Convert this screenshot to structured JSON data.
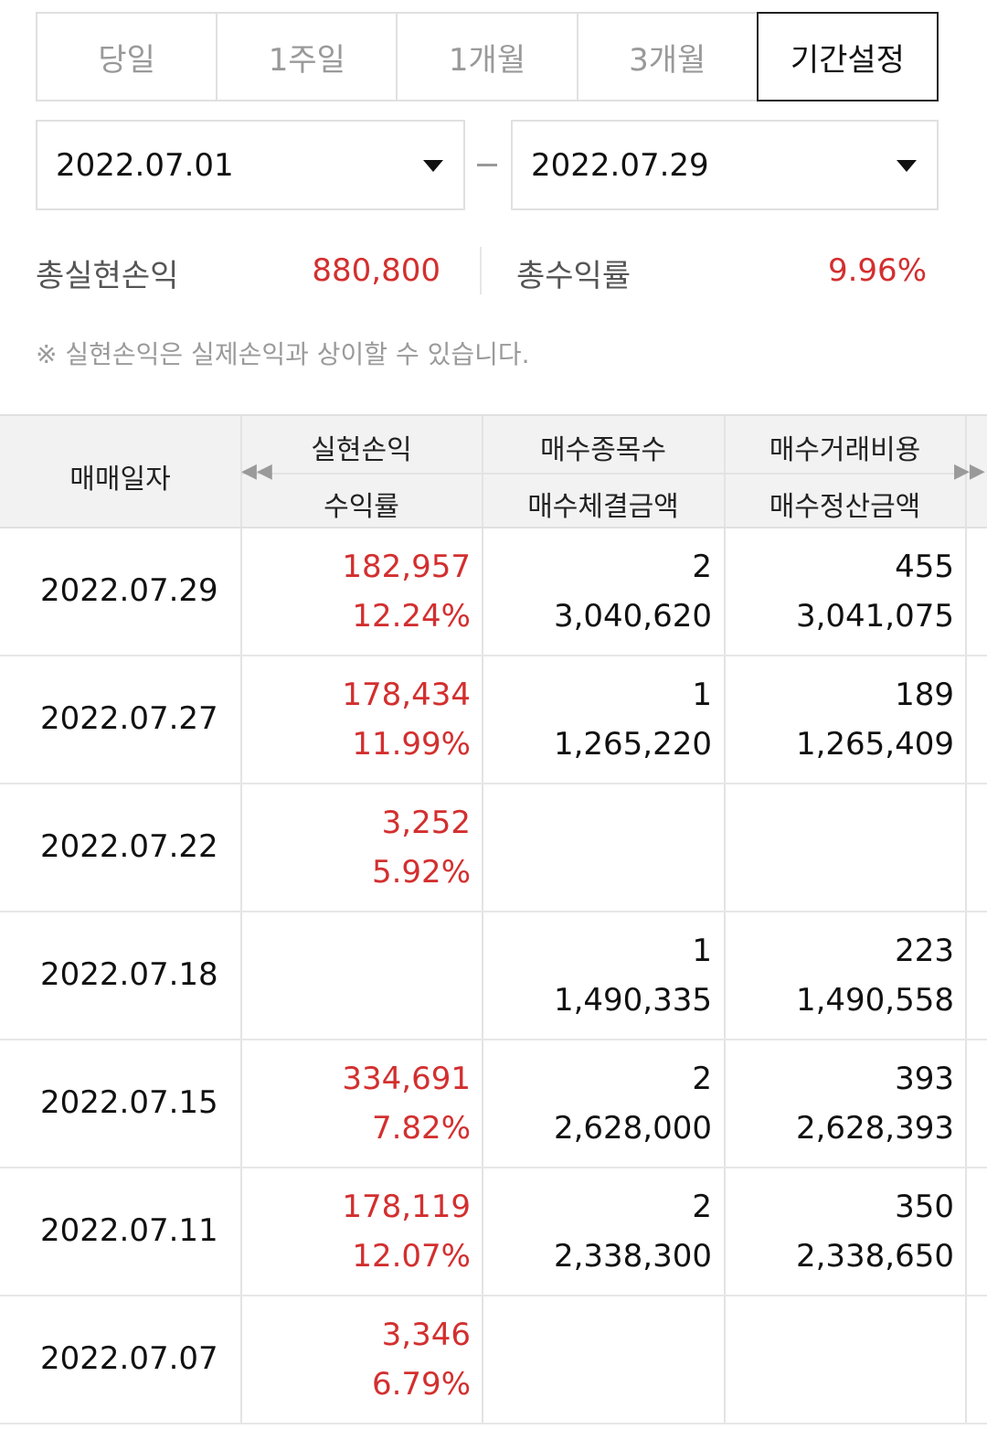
{
  "tabs": [
    {
      "label": "당일",
      "active": false
    },
    {
      "label": "1주일",
      "active": false
    },
    {
      "label": "1개월",
      "active": false
    },
    {
      "label": "3개월",
      "active": false
    },
    {
      "label": "기간설정",
      "active": true
    }
  ],
  "date_range": {
    "start": "2022.07.01",
    "end": "2022.07.29"
  },
  "summary": {
    "realized_label": "총실현손익",
    "realized_value": "880,800",
    "return_label": "총수익률",
    "return_value": "9.96%"
  },
  "note": "※ 실현손익은 실제손익과 상이할 수 있습니다.",
  "table": {
    "headers": {
      "date": "매매일자",
      "col1_top": "실현손익",
      "col1_bottom": "수익률",
      "col2_top": "매수종목수",
      "col2_bottom": "매수체결금액",
      "col3_top": "매수거래비용",
      "col3_bottom": "매수정산금액"
    },
    "rows": [
      {
        "date": "2022.07.29",
        "pnl": "182,957",
        "rate": "12.24%",
        "count": "2",
        "buy_amount": "3,040,620",
        "cost": "455",
        "settle": "3,041,075"
      },
      {
        "date": "2022.07.27",
        "pnl": "178,434",
        "rate": "11.99%",
        "count": "1",
        "buy_amount": "1,265,220",
        "cost": "189",
        "settle": "1,265,409"
      },
      {
        "date": "2022.07.22",
        "pnl": "3,252",
        "rate": "5.92%",
        "count": "",
        "buy_amount": "",
        "cost": "",
        "settle": ""
      },
      {
        "date": "2022.07.18",
        "pnl": "",
        "rate": "",
        "count": "1",
        "buy_amount": "1,490,335",
        "cost": "223",
        "settle": "1,490,558"
      },
      {
        "date": "2022.07.15",
        "pnl": "334,691",
        "rate": "7.82%",
        "count": "2",
        "buy_amount": "2,628,000",
        "cost": "393",
        "settle": "2,628,393"
      },
      {
        "date": "2022.07.11",
        "pnl": "178,119",
        "rate": "12.07%",
        "count": "2",
        "buy_amount": "2,338,300",
        "cost": "350",
        "settle": "2,338,650"
      },
      {
        "date": "2022.07.07",
        "pnl": "3,346",
        "rate": "6.79%",
        "count": "",
        "buy_amount": "",
        "cost": "",
        "settle": ""
      }
    ]
  },
  "colors": {
    "accent_red": "#d32f2f",
    "border": "#e0e0e0",
    "header_bg": "#f2f2f2"
  },
  "icons": {
    "dropdown": "caret-down-icon",
    "scroll_left": "double-left-icon",
    "scroll_right": "double-right-icon"
  }
}
